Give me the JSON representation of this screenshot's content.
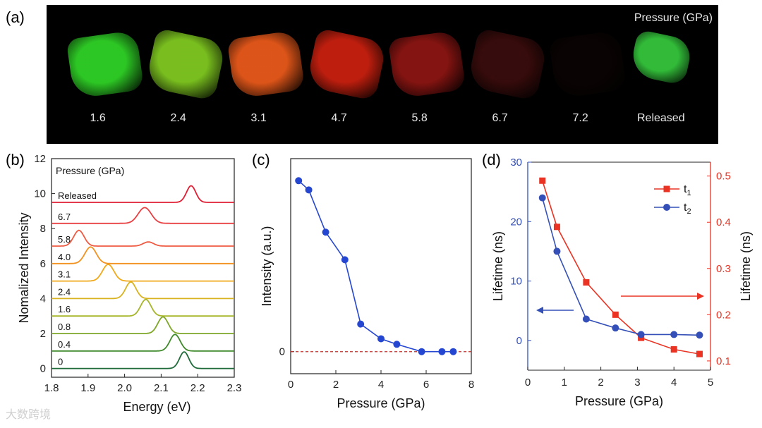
{
  "panel_a": {
    "letter": "(a)",
    "header": "Pressure (GPa)",
    "samples": [
      {
        "label": "1.6",
        "color": "#2fd126"
      },
      {
        "label": "2.4",
        "color": "#7fc820"
      },
      {
        "label": "3.1",
        "color": "#e8591a"
      },
      {
        "label": "4.7",
        "color": "#c8200f"
      },
      {
        "label": "5.8",
        "color": "#8a1512"
      },
      {
        "label": "6.7",
        "color": "#3a0c0c"
      },
      {
        "label": "7.2",
        "color": "#140606"
      },
      {
        "label": "Released",
        "color": "#34c43b"
      }
    ]
  },
  "chart_data": [
    {
      "panel": "(b)",
      "type": "line",
      "xlabel": "Energy (eV)",
      "ylabel": "Nomalized Intensity",
      "xlim": [
        1.8,
        2.3
      ],
      "ylim": [
        -0.5,
        12
      ],
      "xticks": [
        "1.8",
        "1.9",
        "2.0",
        "2.1",
        "2.2",
        "2.3"
      ],
      "yticks": [
        "0",
        "2",
        "4",
        "6",
        "8",
        "10",
        "12"
      ],
      "legend_title": "Pressure (GPa)",
      "series": [
        {
          "name": "0",
          "offset": 0,
          "peak": 2.163,
          "width": 0.018,
          "amp": 1.0,
          "color": "#1f6b3a"
        },
        {
          "name": "0.4",
          "offset": 1.0,
          "peak": 2.138,
          "width": 0.02,
          "amp": 1.0,
          "color": "#3f8a2a"
        },
        {
          "name": "0.8",
          "offset": 2.0,
          "peak": 2.105,
          "width": 0.02,
          "amp": 1.0,
          "color": "#7ea72a"
        },
        {
          "name": "1.6",
          "offset": 3.0,
          "peak": 2.058,
          "width": 0.02,
          "amp": 1.0,
          "color": "#a7b52a"
        },
        {
          "name": "2.4",
          "offset": 4.0,
          "peak": 2.017,
          "width": 0.02,
          "amp": 1.0,
          "color": "#d8b21f"
        },
        {
          "name": "3.1",
          "offset": 5.0,
          "peak": 1.955,
          "width": 0.022,
          "amp": 1.0,
          "color": "#f0a91a"
        },
        {
          "name": "4.0",
          "offset": 6.0,
          "peak": 1.907,
          "width": 0.022,
          "amp": 1.0,
          "color": "#f29221"
        },
        {
          "name": "5.8",
          "offset": 7.0,
          "peak": 1.875,
          "width": 0.02,
          "amp": 0.95,
          "color": "#ef5a42",
          "second_peak": 2.065,
          "second_amp": 0.25
        },
        {
          "name": "6.7",
          "offset": 8.3,
          "peak": 2.055,
          "width": 0.025,
          "amp": 0.95,
          "color": "#e94043"
        },
        {
          "name": "Released",
          "offset": 9.5,
          "peak": 2.182,
          "width": 0.018,
          "amp": 1.0,
          "color": "#e01f35"
        }
      ]
    },
    {
      "panel": "(c)",
      "type": "line",
      "xlabel": "Pressure (GPa)",
      "ylabel": "Intensity (a.u.)",
      "xlim": [
        0,
        8
      ],
      "ylim": [
        -0.12,
        1.05
      ],
      "xticks": [
        "0",
        "2",
        "4",
        "6",
        "8"
      ],
      "yticks": [
        "0"
      ],
      "reference_line": 0,
      "series": [
        {
          "color": "#2446d0",
          "x": [
            0.35,
            0.8,
            1.55,
            2.4,
            3.1,
            4.0,
            4.7,
            5.8,
            6.7,
            7.2
          ],
          "y": [
            0.93,
            0.88,
            0.65,
            0.5,
            0.15,
            0.07,
            0.04,
            0.0,
            0.0,
            0.0
          ]
        }
      ]
    },
    {
      "panel": "(d)",
      "type": "line",
      "xlabel": "Pressure (GPa)",
      "ylabel": "Lifetime (ns)",
      "ylabel_right": "Lifetime (ns)",
      "xlim": [
        0,
        5
      ],
      "ylim": [
        -5,
        30
      ],
      "ylim_right": [
        0.08,
        0.53
      ],
      "xticks": [
        "0",
        "1",
        "2",
        "3",
        "4",
        "5"
      ],
      "yticks": [
        "0",
        "10",
        "20",
        "30"
      ],
      "yticks_right": [
        "0.1",
        "0.2",
        "0.3",
        "0.4",
        "0.5"
      ],
      "series": [
        {
          "name": "t1",
          "axis": "right",
          "marker": "square",
          "color": "#ea3323",
          "x": [
            0.4,
            0.8,
            1.6,
            2.4,
            3.1,
            4.0,
            4.7
          ],
          "y": [
            0.49,
            0.39,
            0.27,
            0.2,
            0.15,
            0.125,
            0.115
          ]
        },
        {
          "name": "t2",
          "axis": "left",
          "marker": "circle",
          "color": "#3450b8",
          "x": [
            0.4,
            0.8,
            1.6,
            2.4,
            3.1,
            4.0,
            4.7
          ],
          "y": [
            24,
            15,
            3.6,
            2.1,
            1.0,
            1.0,
            0.9
          ]
        }
      ],
      "legend": [
        "t1",
        "t2"
      ],
      "legend_position": "top-right"
    }
  ],
  "watermark": "大数跨境"
}
